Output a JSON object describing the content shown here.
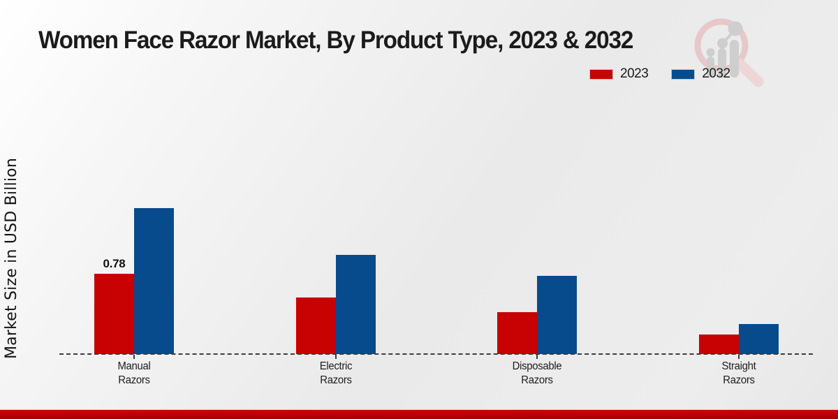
{
  "chart_data": {
    "type": "bar",
    "title": "Women Face Razor Market, By Product Type, 2023 & 2032",
    "ylabel": "Market Size in USD Billion",
    "xlabel": "",
    "categories": [
      "Manual Razors",
      "Electric Razors",
      "Disposable Razors",
      "Straight Razors"
    ],
    "series": [
      {
        "name": "2023",
        "color": "#c80202",
        "values": [
          0.78,
          0.55,
          0.41,
          0.19
        ]
      },
      {
        "name": "2032",
        "color": "#084b8c",
        "values": [
          1.42,
          0.96,
          0.76,
          0.29
        ]
      }
    ],
    "data_labels": [
      {
        "series": "2023",
        "category": "Manual Razors",
        "text": "0.78"
      }
    ],
    "ylim": [
      0,
      1.6
    ],
    "grid": false,
    "legend_position": "top-right",
    "baseline_style": "dashed",
    "axis_color": "#3b3b3b"
  },
  "branding": {
    "watermark_icon": "magnifier-growth-chart-logo",
    "accent_red": "#b40000"
  }
}
